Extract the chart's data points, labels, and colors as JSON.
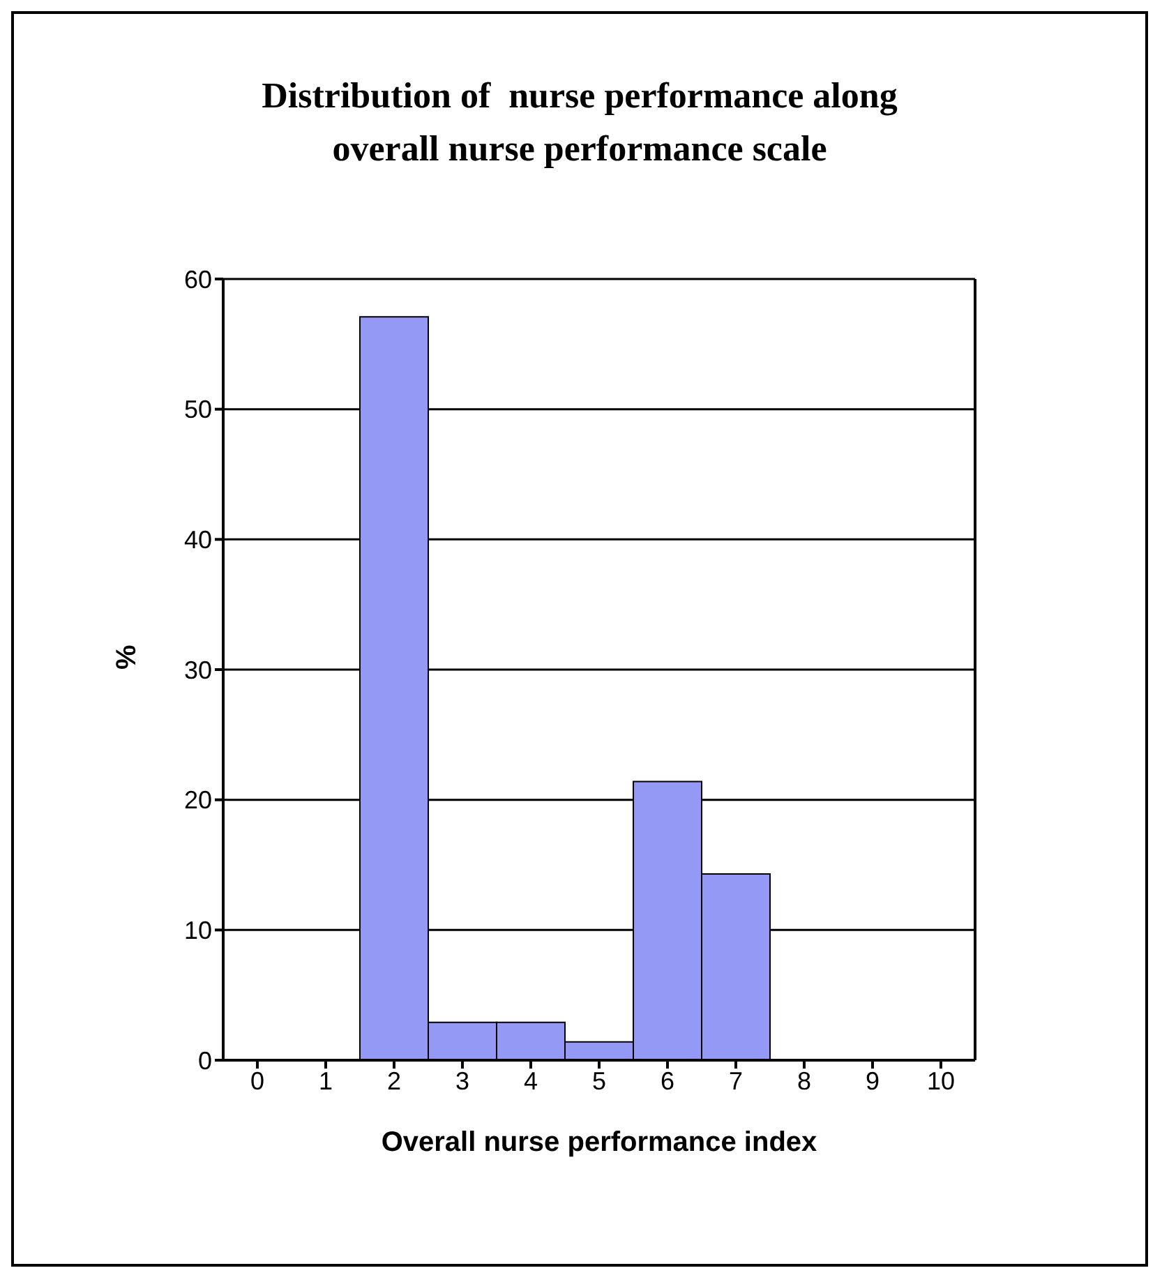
{
  "chart_data": {
    "type": "bar",
    "title": "Distribution of  nurse performance along overall nurse performance scale",
    "xlabel": "Overall nurse performance index",
    "ylabel": "%",
    "categories": [
      "0",
      "1",
      "2",
      "3",
      "4",
      "5",
      "6",
      "7",
      "8",
      "9",
      "10"
    ],
    "values": [
      0,
      0,
      57.1,
      2.9,
      2.9,
      1.4,
      21.4,
      14.3,
      0,
      0,
      0
    ],
    "color": "#9499f5",
    "ylim": [
      0,
      60
    ],
    "yticks": [
      0,
      10,
      20,
      30,
      40,
      50,
      60
    ],
    "grid": "y"
  }
}
